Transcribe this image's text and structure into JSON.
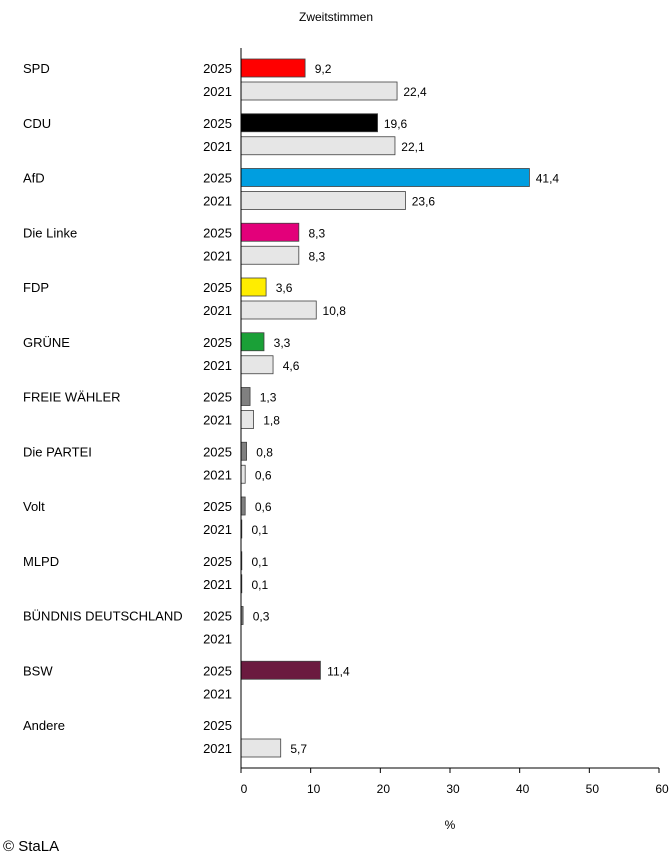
{
  "copyright": "© StaLA",
  "chart_data": {
    "type": "bar",
    "orientation": "horizontal",
    "title": "Zweitstimmen",
    "xlabel": "%",
    "xlim": [
      0,
      60
    ],
    "xticks": [
      0,
      10,
      20,
      30,
      40,
      50,
      60
    ],
    "years": [
      "2025",
      "2021"
    ],
    "prev_color": "#e6e6e6",
    "parties": [
      {
        "name": "SPD",
        "color": "#ff0000",
        "values": [
          9.2,
          22.4
        ],
        "labels": [
          "9,2",
          "22,4"
        ]
      },
      {
        "name": "CDU",
        "color": "#000000",
        "values": [
          19.6,
          22.1
        ],
        "labels": [
          "19,6",
          "22,1"
        ]
      },
      {
        "name": "AfD",
        "color": "#009ee0",
        "values": [
          41.4,
          23.6
        ],
        "labels": [
          "41,4",
          "23,6"
        ]
      },
      {
        "name": "Die Linke",
        "color": "#e3007a",
        "values": [
          8.3,
          8.3
        ],
        "labels": [
          "8,3",
          "8,3"
        ]
      },
      {
        "name": "FDP",
        "color": "#ffed00",
        "values": [
          3.6,
          10.8
        ],
        "labels": [
          "3,6",
          "10,8"
        ]
      },
      {
        "name": "GRÜNE",
        "color": "#1aa037",
        "values": [
          3.3,
          4.6
        ],
        "labels": [
          "3,3",
          "4,6"
        ]
      },
      {
        "name": "FREIE WÄHLER",
        "color": "#808080",
        "values": [
          1.3,
          1.8
        ],
        "labels": [
          "1,3",
          "1,8"
        ]
      },
      {
        "name": "Die PARTEI",
        "color": "#808080",
        "values": [
          0.8,
          0.6
        ],
        "labels": [
          "0,8",
          "0,6"
        ]
      },
      {
        "name": "Volt",
        "color": "#808080",
        "values": [
          0.6,
          0.1
        ],
        "labels": [
          "0,6",
          "0,1"
        ]
      },
      {
        "name": "MLPD",
        "color": "#808080",
        "values": [
          0.1,
          0.1
        ],
        "labels": [
          "0,1",
          "0,1"
        ]
      },
      {
        "name": "BÜNDNIS DEUTSCHLAND",
        "color": "#808080",
        "values": [
          0.3,
          null
        ],
        "labels": [
          "0,3",
          ""
        ]
      },
      {
        "name": "BSW",
        "color": "#6b1a3f",
        "values": [
          11.4,
          null
        ],
        "labels": [
          "11,4",
          ""
        ]
      },
      {
        "name": "Andere",
        "color": "#808080",
        "values": [
          null,
          5.7
        ],
        "labels": [
          "",
          "5,7"
        ]
      }
    ]
  }
}
